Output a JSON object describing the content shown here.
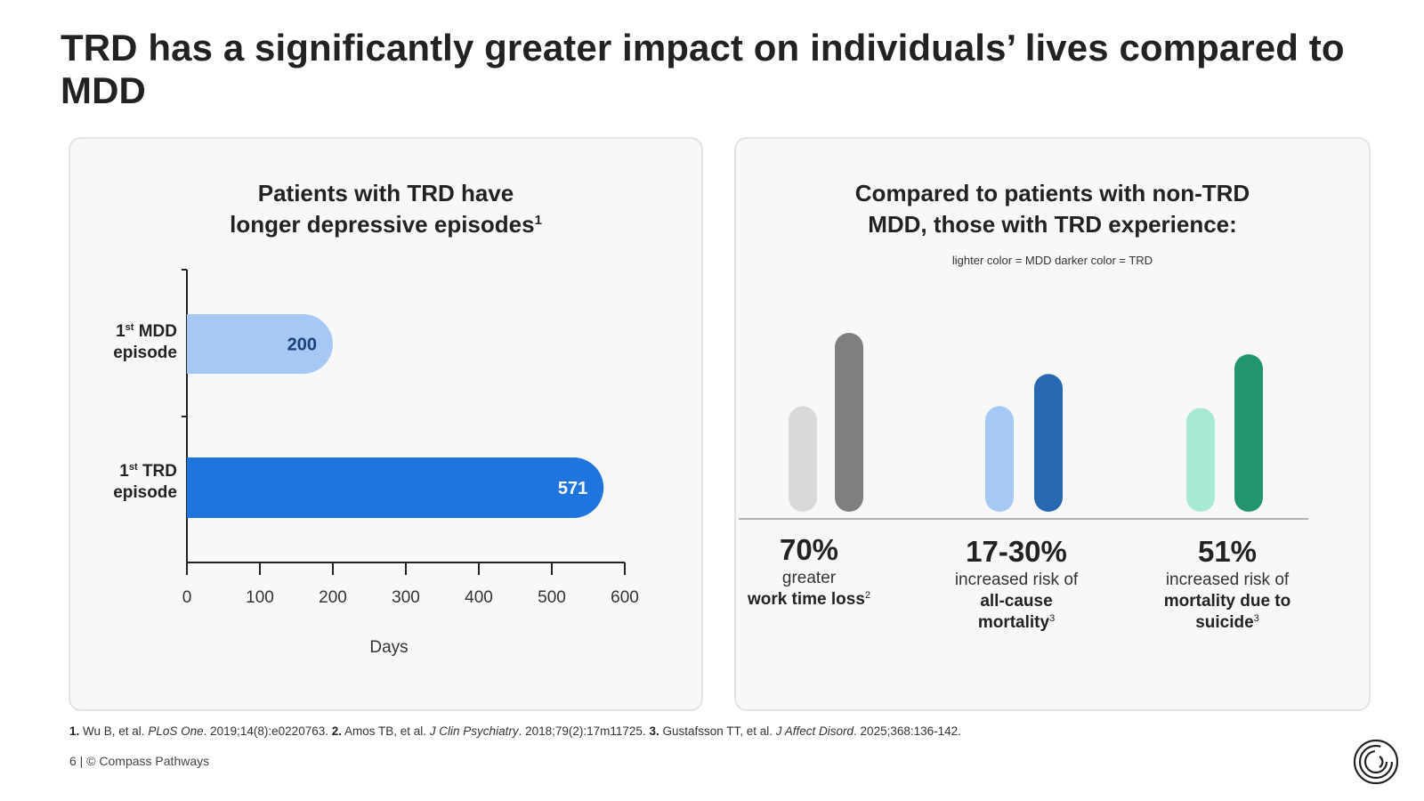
{
  "slide": {
    "title": "TRD has a significantly greater impact on individuals’ lives compared to MDD"
  },
  "left_panel": {
    "title_line1": "Patients with TRD have",
    "title_line2": "longer depressive episodes",
    "title_sup": "1"
  },
  "right_panel": {
    "title_line1": "Compared to patients with non-TRD",
    "title_line2": "MDD, those with TRD experience:",
    "legend_note": "lighter color = MDD darker color = TRD",
    "stats": [
      {
        "value": "70%",
        "line1": "greater",
        "line2": "work time loss",
        "line2_sup": "2",
        "line3": "",
        "line3_sup": ""
      },
      {
        "value": "17-30%",
        "line1": "increased risk of",
        "line2": "all-cause",
        "line2_sup": "",
        "line3": "mortality",
        "line3_sup": "3"
      },
      {
        "value": "51%",
        "line1": "increased risk of",
        "line2": "mortality due to",
        "line2_sup": "",
        "line3": "suicide",
        "line3_sup": "3"
      }
    ]
  },
  "chart_data": [
    {
      "type": "bar",
      "orientation": "horizontal",
      "title": "Patients with TRD have longer depressive episodes",
      "categories": [
        {
          "number": "1",
          "suffix": "st",
          "label": "MDD",
          "line2": "episode"
        },
        {
          "number": "1",
          "suffix": "st",
          "label": "TRD",
          "line2": "episode"
        }
      ],
      "values": [
        200,
        571
      ],
      "value_labels": [
        "200",
        "571"
      ],
      "colors": [
        "#a6c8f5",
        "#1f74de"
      ],
      "label_colors": [
        "#1b3f7a",
        "#ffffff"
      ],
      "xlabel": "Days",
      "xlim": [
        0,
        600
      ],
      "xticks": [
        0,
        100,
        200,
        300,
        400,
        500,
        600
      ],
      "grid": false
    },
    {
      "type": "bar",
      "orientation": "vertical",
      "categories": [
        "70%",
        "17-30%",
        "51%"
      ],
      "series": [
        {
          "name": "MDD",
          "colors": [
            "#d9d9d9",
            "#a6c8f5",
            "#a8e9d4"
          ],
          "values": [
            0.59,
            0.59,
            0.58
          ]
        },
        {
          "name": "TRD",
          "colors": [
            "#7f7f7f",
            "#2867b2",
            "#22956f"
          ],
          "values": [
            1.0,
            0.77,
            0.88
          ]
        }
      ],
      "axes": "none",
      "grid": false
    }
  ],
  "references": {
    "r1_num": "1.",
    "r1_a": " Wu B, et al. ",
    "r1_journal": "PLoS One",
    "r1_b": ". 2019;14(8):e0220763. ",
    "r2_num": "2.",
    "r2_a": " Amos TB, et al. ",
    "r2_journal": "J Clin Psychiatry",
    "r2_b": ". 2018;79(2):17m11725. ",
    "r3_num": "3.",
    "r3_a": " Gustafsson TT, et al. ",
    "r3_journal": "J Affect Disord",
    "r3_b": ". 2025;368:136-142."
  },
  "footer": {
    "text": "6 | © Compass Pathways"
  },
  "logo": {
    "icon": "compass-pathways-logo"
  }
}
